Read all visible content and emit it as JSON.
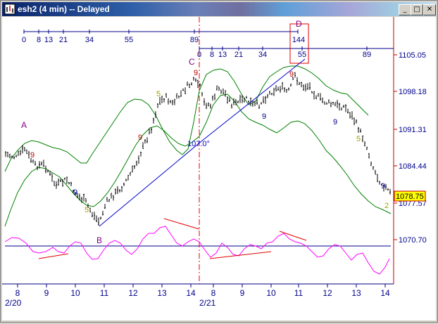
{
  "window": {
    "title": "esh2 (4 min) -- Delayed",
    "minimize_glyph": "_",
    "maximize_glyph": "□",
    "close_glyph": "✕"
  },
  "chart": {
    "price_labels": [
      "1105.05",
      "1098.18",
      "1091.31",
      "1084.44",
      "1077.57",
      "1070.70"
    ],
    "current_price": "1078.75",
    "x_tick_labels": [
      "8",
      "9",
      "10",
      "11",
      "12",
      "13",
      "14",
      "8",
      "9",
      "10",
      "11",
      "12",
      "13",
      "14"
    ],
    "date_labels": [
      "2/20",
      "2/21"
    ],
    "fib_scale_top": [
      "0",
      "8",
      "13",
      "21",
      "34",
      "55",
      "89",
      "144"
    ],
    "fib_scale_bottom": [
      "0",
      "8",
      "13",
      "21",
      "34",
      "55",
      "89"
    ],
    "angle_label": "107.0°",
    "wave_labels": [
      "A",
      "B",
      "C",
      "D"
    ],
    "count_labels": [
      "9",
      "9",
      "5",
      "9",
      "5",
      "9",
      "9",
      "9",
      "9",
      "5",
      "9",
      "2"
    ]
  },
  "colors": {
    "price_bars": "#000000",
    "envelope": "#008000",
    "oscillator": "#ff00ff",
    "fib_scale": "#00008b",
    "trendline": "#0000cd",
    "divergence": "#e00000",
    "current_price_bg": "#ffff00",
    "wave_label": "#800080"
  }
}
